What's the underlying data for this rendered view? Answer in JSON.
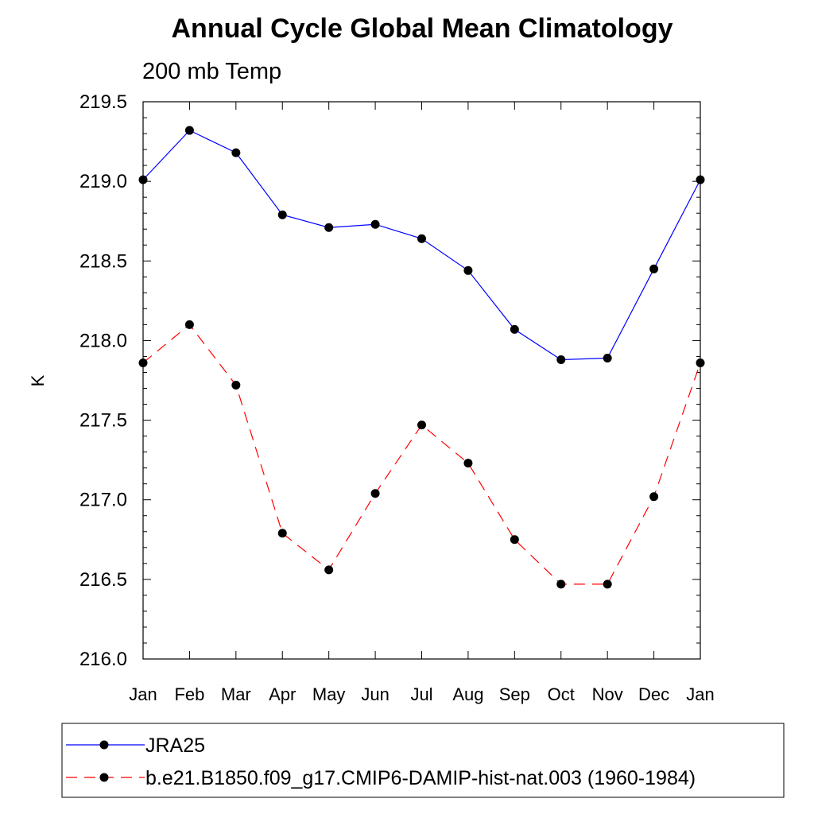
{
  "chart_data": {
    "type": "line",
    "title": "Annual Cycle Global Mean Climatology",
    "subtitle": "200 mb Temp",
    "ylabel": "K",
    "xlabel": "",
    "categories": [
      "Jan",
      "Feb",
      "Mar",
      "Apr",
      "May",
      "Jun",
      "Jul",
      "Aug",
      "Sep",
      "Oct",
      "Nov",
      "Dec",
      "Jan"
    ],
    "ylim": [
      216.0,
      219.5
    ],
    "yticks": [
      "216.0",
      "216.5",
      "217.0",
      "217.5",
      "218.0",
      "218.5",
      "219.0",
      "219.5"
    ],
    "grid": false,
    "legend_position": "bottom",
    "series": [
      {
        "name": "JRA25",
        "color": "#0000ff",
        "line_style": "solid",
        "marker": "filled-circle",
        "values": [
          219.01,
          219.32,
          219.18,
          218.79,
          218.71,
          218.73,
          218.64,
          218.44,
          218.07,
          217.88,
          217.89,
          218.45,
          219.01
        ]
      },
      {
        "name": "b.e21.B1850.f09_g17.CMIP6-DAMIP-hist-nat.003 (1960-1984)",
        "color": "#ff0000",
        "line_style": "dashed",
        "marker": "filled-circle",
        "values": [
          217.86,
          218.1,
          217.72,
          216.79,
          216.56,
          217.04,
          217.47,
          217.23,
          216.75,
          216.47,
          216.47,
          217.02,
          217.86
        ]
      }
    ]
  }
}
